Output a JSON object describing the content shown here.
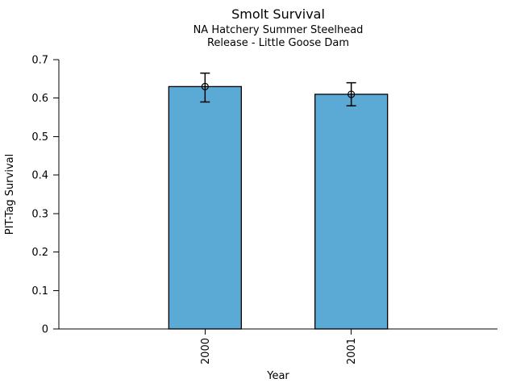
{
  "figure": {
    "title": "Smolt Survival",
    "subtitle_line1": "NA Hatchery Summer Steelhead",
    "subtitle_line2": "Release - Little Goose Dam"
  },
  "chart_data": {
    "type": "bar",
    "title": "Smolt Survival",
    "subtitle": [
      "NA Hatchery Summer Steelhead",
      "Release - Little Goose Dam"
    ],
    "categories": [
      "2000",
      "2001"
    ],
    "values": [
      0.63,
      0.61
    ],
    "error_low": [
      0.59,
      0.58
    ],
    "error_high": [
      0.665,
      0.64
    ],
    "xlabel": "Year",
    "ylabel": "PIT-Tag Survival",
    "ylim": [
      0,
      0.7
    ],
    "yticks": [
      0,
      0.1,
      0.2,
      0.3,
      0.4,
      0.5,
      0.6,
      0.7
    ],
    "ytick_labels": [
      "0",
      "0.1",
      "0.2",
      "0.3",
      "0.4",
      "0.5",
      "0.6",
      "0.7"
    ],
    "xtick_label_rotation": 90,
    "bar_color": "#5BA9D5",
    "bar_edge_color": "#000000",
    "error_bar_color": "#000000",
    "marker": "open-circle",
    "grid": false,
    "legend": false,
    "background": "#FFFFFF"
  }
}
